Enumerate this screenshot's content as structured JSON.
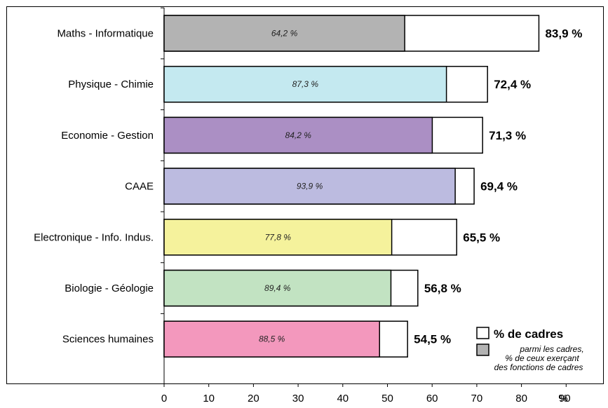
{
  "chart_data": {
    "type": "bar",
    "orientation": "horizontal",
    "categories": [
      "Maths - Informatique",
      "Physique - Chimie",
      "Economie - Gestion",
      "CAAE",
      "Electronique - Info. Indus.",
      "Biologie - Géologie",
      "Sciences humaines"
    ],
    "series": [
      {
        "name": "% de cadres",
        "values": [
          83.9,
          72.4,
          71.3,
          69.4,
          65.5,
          56.8,
          54.5
        ],
        "labels": [
          "83,9 %",
          "72,4 %",
          "71,3 %",
          "69,4 %",
          "65,5 %",
          "56,8 %",
          "54,5 %"
        ]
      },
      {
        "name": "parmi les cadres, % de ceux exerçant des fonctions de cadres",
        "legend_lines": [
          "parmi les cadres,",
          "% de ceux exerçant",
          "des fonctions de cadres"
        ],
        "values": [
          64.2,
          87.3,
          84.2,
          93.9,
          77.8,
          89.4,
          88.5
        ],
        "labels": [
          "64,2 %",
          "87,3 %",
          "84,2 %",
          "93,9 %",
          "77,8 %",
          "89,4 %",
          "88,5 %"
        ]
      }
    ],
    "bar_colors": [
      "#b3b3b3",
      "#c4e9f0",
      "#ab8fc4",
      "#bcbbe0",
      "#f5f29c",
      "#c2e3c2",
      "#f398bd"
    ],
    "xlim": [
      0,
      90
    ],
    "xticks": [
      "0",
      "10",
      "20",
      "30",
      "40",
      "50",
      "60",
      "70",
      "80",
      "90"
    ],
    "xunit": "%",
    "legend_placement": "bottom-right",
    "grid": false
  }
}
